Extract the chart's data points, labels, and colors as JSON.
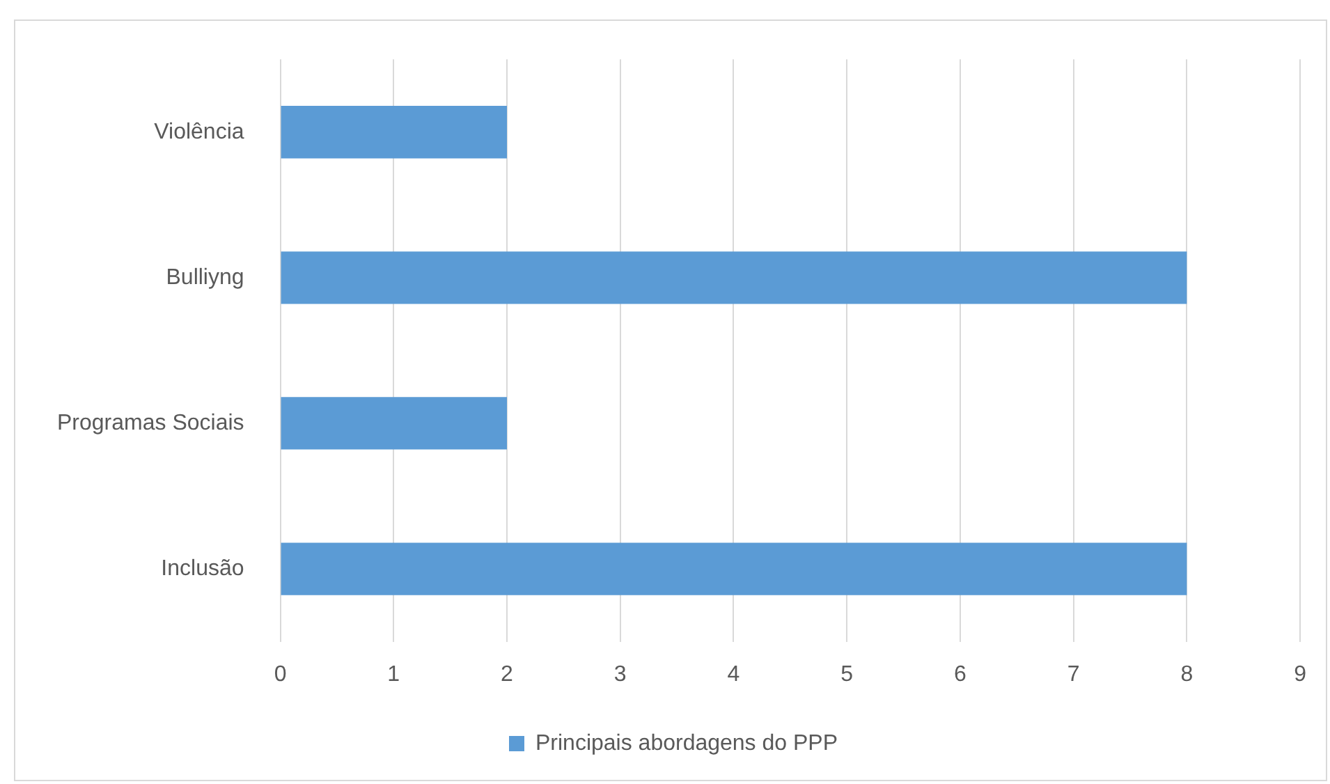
{
  "chart_data": {
    "type": "bar",
    "orientation": "horizontal",
    "categories": [
      "Violência",
      "Bulliyng",
      "Programas Sociais",
      "Inclusão"
    ],
    "series": [
      {
        "name": "Principais abordagens do PPP",
        "color": "#5b9bd5",
        "values": [
          2,
          8,
          2,
          8
        ]
      }
    ],
    "xlim": [
      0,
      9
    ],
    "xticks": [
      0,
      1,
      2,
      3,
      4,
      5,
      6,
      7,
      8,
      9
    ],
    "grid": "x",
    "legend": "bottom"
  }
}
